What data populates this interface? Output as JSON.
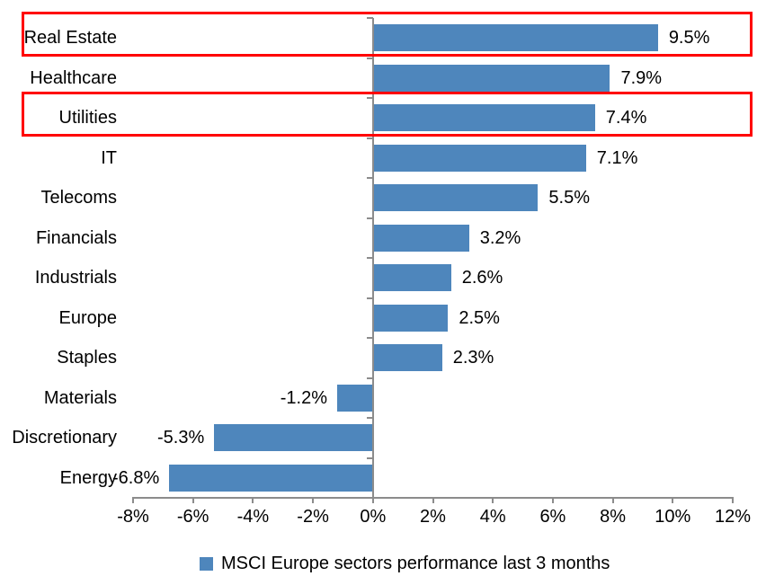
{
  "chart_data": {
    "type": "bar",
    "orientation": "horizontal",
    "title": "",
    "categories": [
      "Real Estate",
      "Healthcare",
      "Utilities",
      "IT",
      "Telecoms",
      "Financials",
      "Industrials",
      "Europe",
      "Staples",
      "Materials",
      "Discretionary",
      "Energy"
    ],
    "values": [
      9.5,
      7.9,
      7.4,
      7.1,
      5.5,
      3.2,
      2.6,
      2.5,
      2.3,
      -1.2,
      -5.3,
      -6.8
    ],
    "value_labels": [
      "9.5%",
      "7.9%",
      "7.4%",
      "7.1%",
      "5.5%",
      "3.2%",
      "2.6%",
      "2.5%",
      "2.3%",
      "-1.2%",
      "-5.3%",
      "-6.8%"
    ],
    "series_name": "MSCI Europe sectors performance last 3 months",
    "xlim": [
      -8,
      12
    ],
    "x_tick_step": 2,
    "x_tick_labels": [
      "-8%",
      "-6%",
      "-4%",
      "-2%",
      "0%",
      "2%",
      "4%",
      "6%",
      "8%",
      "10%",
      "12%"
    ],
    "grid": false,
    "legend_position": "bottom-center",
    "highlighted_categories": [
      "Real Estate",
      "Utilities"
    ],
    "colors": {
      "bar": "#4E86BC",
      "axis": "#8C8C8C",
      "highlight_box": "#FF0000",
      "text": "#000000"
    }
  },
  "legend": {
    "swatch_icon": "square-swatch",
    "label": "MSCI Europe sectors performance last 3 months"
  }
}
